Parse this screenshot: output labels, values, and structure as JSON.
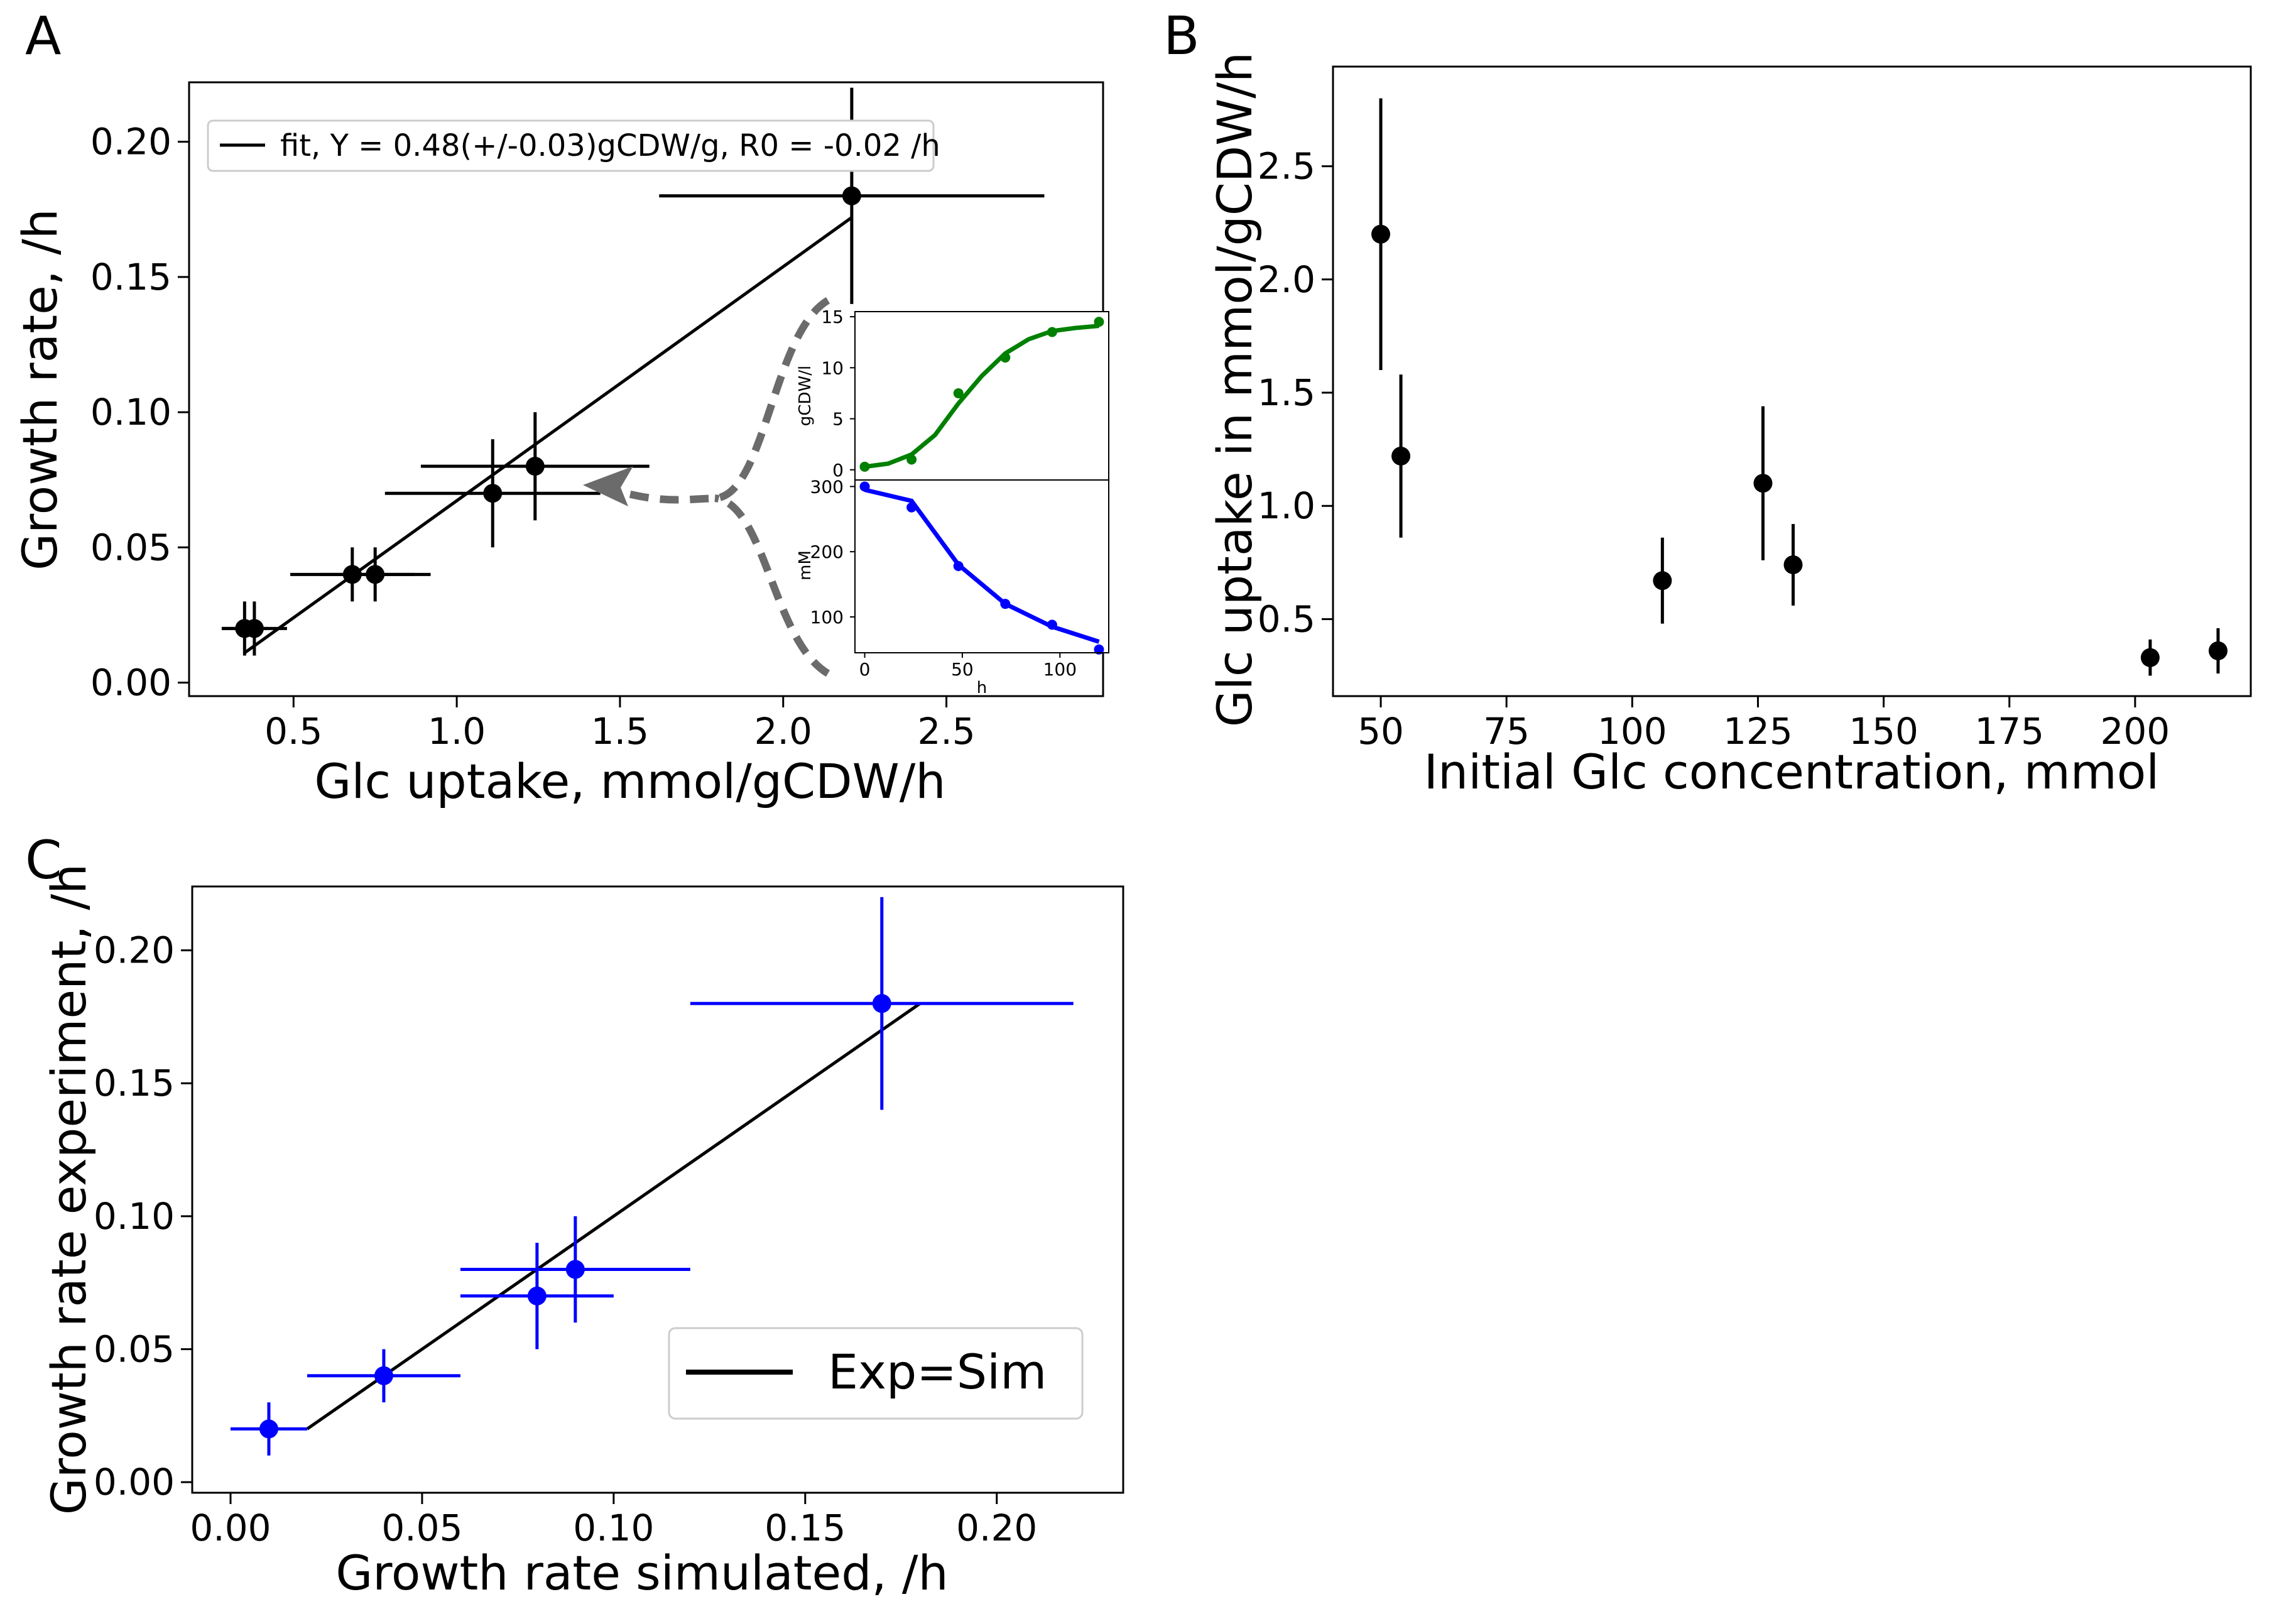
{
  "chart_data": [
    {
      "panel": "A",
      "type": "scatter",
      "xlabel": "Glc uptake, mmol/gCDW/h",
      "ylabel": "Growth rate, /h",
      "xlim": [
        0.18,
        2.98
      ],
      "ylim": [
        -0.005,
        0.222
      ],
      "xticks": [
        0.5,
        1.0,
        1.5,
        2.0,
        2.5
      ],
      "xtick_labels": [
        "0.5",
        "1.0",
        "1.5",
        "2.0",
        "2.5"
      ],
      "yticks": [
        0.0,
        0.05,
        0.1,
        0.15,
        0.2
      ],
      "ytick_labels": [
        "0.00",
        "0.05",
        "0.10",
        "0.15",
        "0.20"
      ],
      "points": [
        {
          "x": 0.35,
          "y": 0.02,
          "xerr": 0.07,
          "yerr": 0.01
        },
        {
          "x": 0.38,
          "y": 0.02,
          "xerr": 0.1,
          "yerr": 0.01
        },
        {
          "x": 0.68,
          "y": 0.04,
          "xerr": 0.19,
          "yerr": 0.01
        },
        {
          "x": 0.75,
          "y": 0.04,
          "xerr": 0.17,
          "yerr": 0.01
        },
        {
          "x": 1.11,
          "y": 0.07,
          "xerr": 0.33,
          "yerr": 0.02
        },
        {
          "x": 1.24,
          "y": 0.08,
          "xerr": 0.35,
          "yerr": 0.02
        },
        {
          "x": 2.21,
          "y": 0.18,
          "xerr": 0.59,
          "yerr": 0.04
        }
      ],
      "fit_line": {
        "x": [
          0.35,
          2.21
        ],
        "y": [
          0.011,
          0.172
        ]
      },
      "legend": {
        "label": "fit, Y = 0.48(+/-0.03)gCDW/g, R0 = -0.02 /h",
        "position": "upper-left"
      },
      "inset": {
        "top": {
          "ylabel": "gCDW/l",
          "ylim": [
            -1,
            15.5
          ],
          "yticks": [
            0,
            5,
            10,
            15
          ],
          "ytick_labels": [
            "0",
            "5",
            "10",
            "15"
          ],
          "x": [
            0,
            24,
            48,
            72,
            96,
            120
          ],
          "y": [
            0.3,
            1.0,
            7.5,
            11.0,
            13.5,
            14.5
          ],
          "curve_x": [
            0,
            12,
            24,
            36,
            48,
            60,
            72,
            84,
            96,
            108,
            120
          ],
          "curve_y": [
            0.3,
            0.6,
            1.5,
            3.4,
            6.5,
            9.2,
            11.4,
            12.8,
            13.6,
            13.9,
            14.1
          ],
          "color": "#008000"
        },
        "bottom": {
          "ylabel": "mM",
          "ylim": [
            45,
            310
          ],
          "yticks": [
            100,
            200,
            300
          ],
          "ytick_labels": [
            "100",
            "200",
            "300"
          ],
          "x": [
            0,
            24,
            48,
            72,
            96,
            120
          ],
          "y": [
            300,
            268,
            178,
            120,
            88,
            50
          ],
          "curve_x": [
            0,
            24,
            48,
            72,
            96,
            120
          ],
          "curve_y": [
            295,
            278,
            180,
            120,
            85,
            62
          ],
          "color": "#0000ff"
        },
        "xlabel": "h",
        "xlim": [
          -5,
          125
        ],
        "xticks": [
          0,
          50,
          100
        ],
        "xtick_labels": [
          "0",
          "50",
          "100"
        ]
      }
    },
    {
      "panel": "B",
      "type": "scatter",
      "xlabel": "Initial Glc concentration, mmol",
      "ylabel": "Glc uptake in mmol/gCDW/h",
      "xlim": [
        40.5,
        223
      ],
      "ylim": [
        0.16,
        2.94
      ],
      "xticks": [
        50,
        75,
        100,
        125,
        150,
        175,
        200
      ],
      "xtick_labels": [
        "50",
        "75",
        "100",
        "125",
        "150",
        "175",
        "200"
      ],
      "yticks": [
        0.5,
        1.0,
        1.5,
        2.0,
        2.5
      ],
      "ytick_labels": [
        "0.5",
        "1.0",
        "1.5",
        "2.0",
        "2.5"
      ],
      "points": [
        {
          "x": 50,
          "y": 2.2,
          "yerr": 0.6
        },
        {
          "x": 54,
          "y": 1.22,
          "yerr": 0.36
        },
        {
          "x": 106,
          "y": 0.67,
          "yerr": 0.19
        },
        {
          "x": 126,
          "y": 1.1,
          "yerr": 0.34
        },
        {
          "x": 132,
          "y": 0.74,
          "yerr": 0.18
        },
        {
          "x": 203,
          "y": 0.33,
          "yerr": 0.08
        },
        {
          "x": 216.5,
          "y": 0.36,
          "yerr": 0.1
        }
      ]
    },
    {
      "panel": "C",
      "type": "scatter",
      "xlabel": "Growth rate simulated, /h",
      "ylabel": "Growth rate experiment, /h",
      "xlim": [
        -0.01,
        0.233
      ],
      "ylim": [
        -0.004,
        0.224
      ],
      "xticks": [
        0.0,
        0.05,
        0.1,
        0.15,
        0.2
      ],
      "xtick_labels": [
        "0.00",
        "0.05",
        "0.10",
        "0.15",
        "0.20"
      ],
      "yticks": [
        0.0,
        0.05,
        0.1,
        0.15,
        0.2
      ],
      "ytick_labels": [
        "0.00",
        "0.05",
        "0.10",
        "0.15",
        "0.20"
      ],
      "points": [
        {
          "x": 0.01,
          "y": 0.02,
          "xerr": 0.01,
          "yerr": 0.01
        },
        {
          "x": 0.04,
          "y": 0.04,
          "xerr": 0.02,
          "yerr": 0.01
        },
        {
          "x": 0.08,
          "y": 0.07,
          "xerr": 0.02,
          "yerr": 0.02
        },
        {
          "x": 0.09,
          "y": 0.08,
          "xerr": 0.03,
          "yerr": 0.02
        },
        {
          "x": 0.17,
          "y": 0.18,
          "xerr": 0.05,
          "yerr": 0.04
        }
      ],
      "point_color": "#0000ff",
      "line": {
        "x": [
          0.02,
          0.18
        ],
        "y": [
          0.02,
          0.18
        ]
      },
      "legend": {
        "label": "Exp=Sim",
        "position": "lower-right"
      }
    }
  ]
}
